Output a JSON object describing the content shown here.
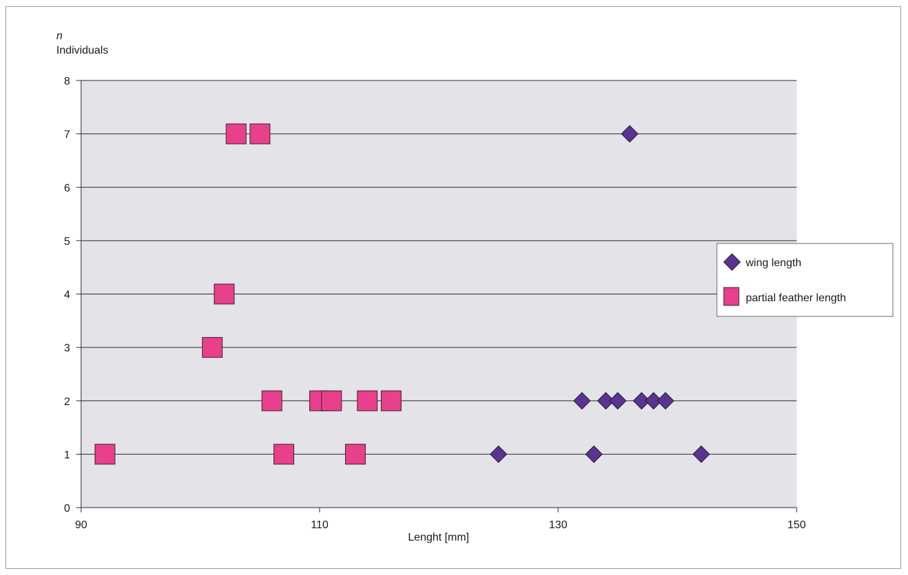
{
  "chart_data": {
    "type": "scatter",
    "title": "",
    "ylabel_symbol": "n",
    "ylabel": "Individuals",
    "xlabel": "Lenght [mm]",
    "xlim": [
      90,
      150
    ],
    "ylim": [
      0,
      8
    ],
    "x_ticks": [
      90,
      110,
      130,
      150
    ],
    "y_ticks": [
      0,
      1,
      2,
      3,
      4,
      5,
      6,
      7,
      8
    ],
    "grid": "horizontal",
    "legend_position": "right",
    "series": [
      {
        "name": "wing length",
        "marker": "diamond",
        "color": "#5a3590",
        "points": [
          {
            "x": 136,
            "y": 7
          },
          {
            "x": 132,
            "y": 2
          },
          {
            "x": 134,
            "y": 2
          },
          {
            "x": 135,
            "y": 2
          },
          {
            "x": 137,
            "y": 2
          },
          {
            "x": 138,
            "y": 2
          },
          {
            "x": 139,
            "y": 2
          },
          {
            "x": 125,
            "y": 1
          },
          {
            "x": 133,
            "y": 1
          },
          {
            "x": 142,
            "y": 1
          }
        ]
      },
      {
        "name": "partial feather length",
        "marker": "square",
        "color": "#e8408a",
        "points": [
          {
            "x": 103,
            "y": 7
          },
          {
            "x": 105,
            "y": 7
          },
          {
            "x": 102,
            "y": 4
          },
          {
            "x": 101,
            "y": 3
          },
          {
            "x": 106,
            "y": 2
          },
          {
            "x": 110,
            "y": 2
          },
          {
            "x": 111,
            "y": 2
          },
          {
            "x": 114,
            "y": 2
          },
          {
            "x": 116,
            "y": 2
          },
          {
            "x": 92,
            "y": 1
          },
          {
            "x": 107,
            "y": 1
          },
          {
            "x": 113,
            "y": 1
          }
        ]
      }
    ]
  }
}
